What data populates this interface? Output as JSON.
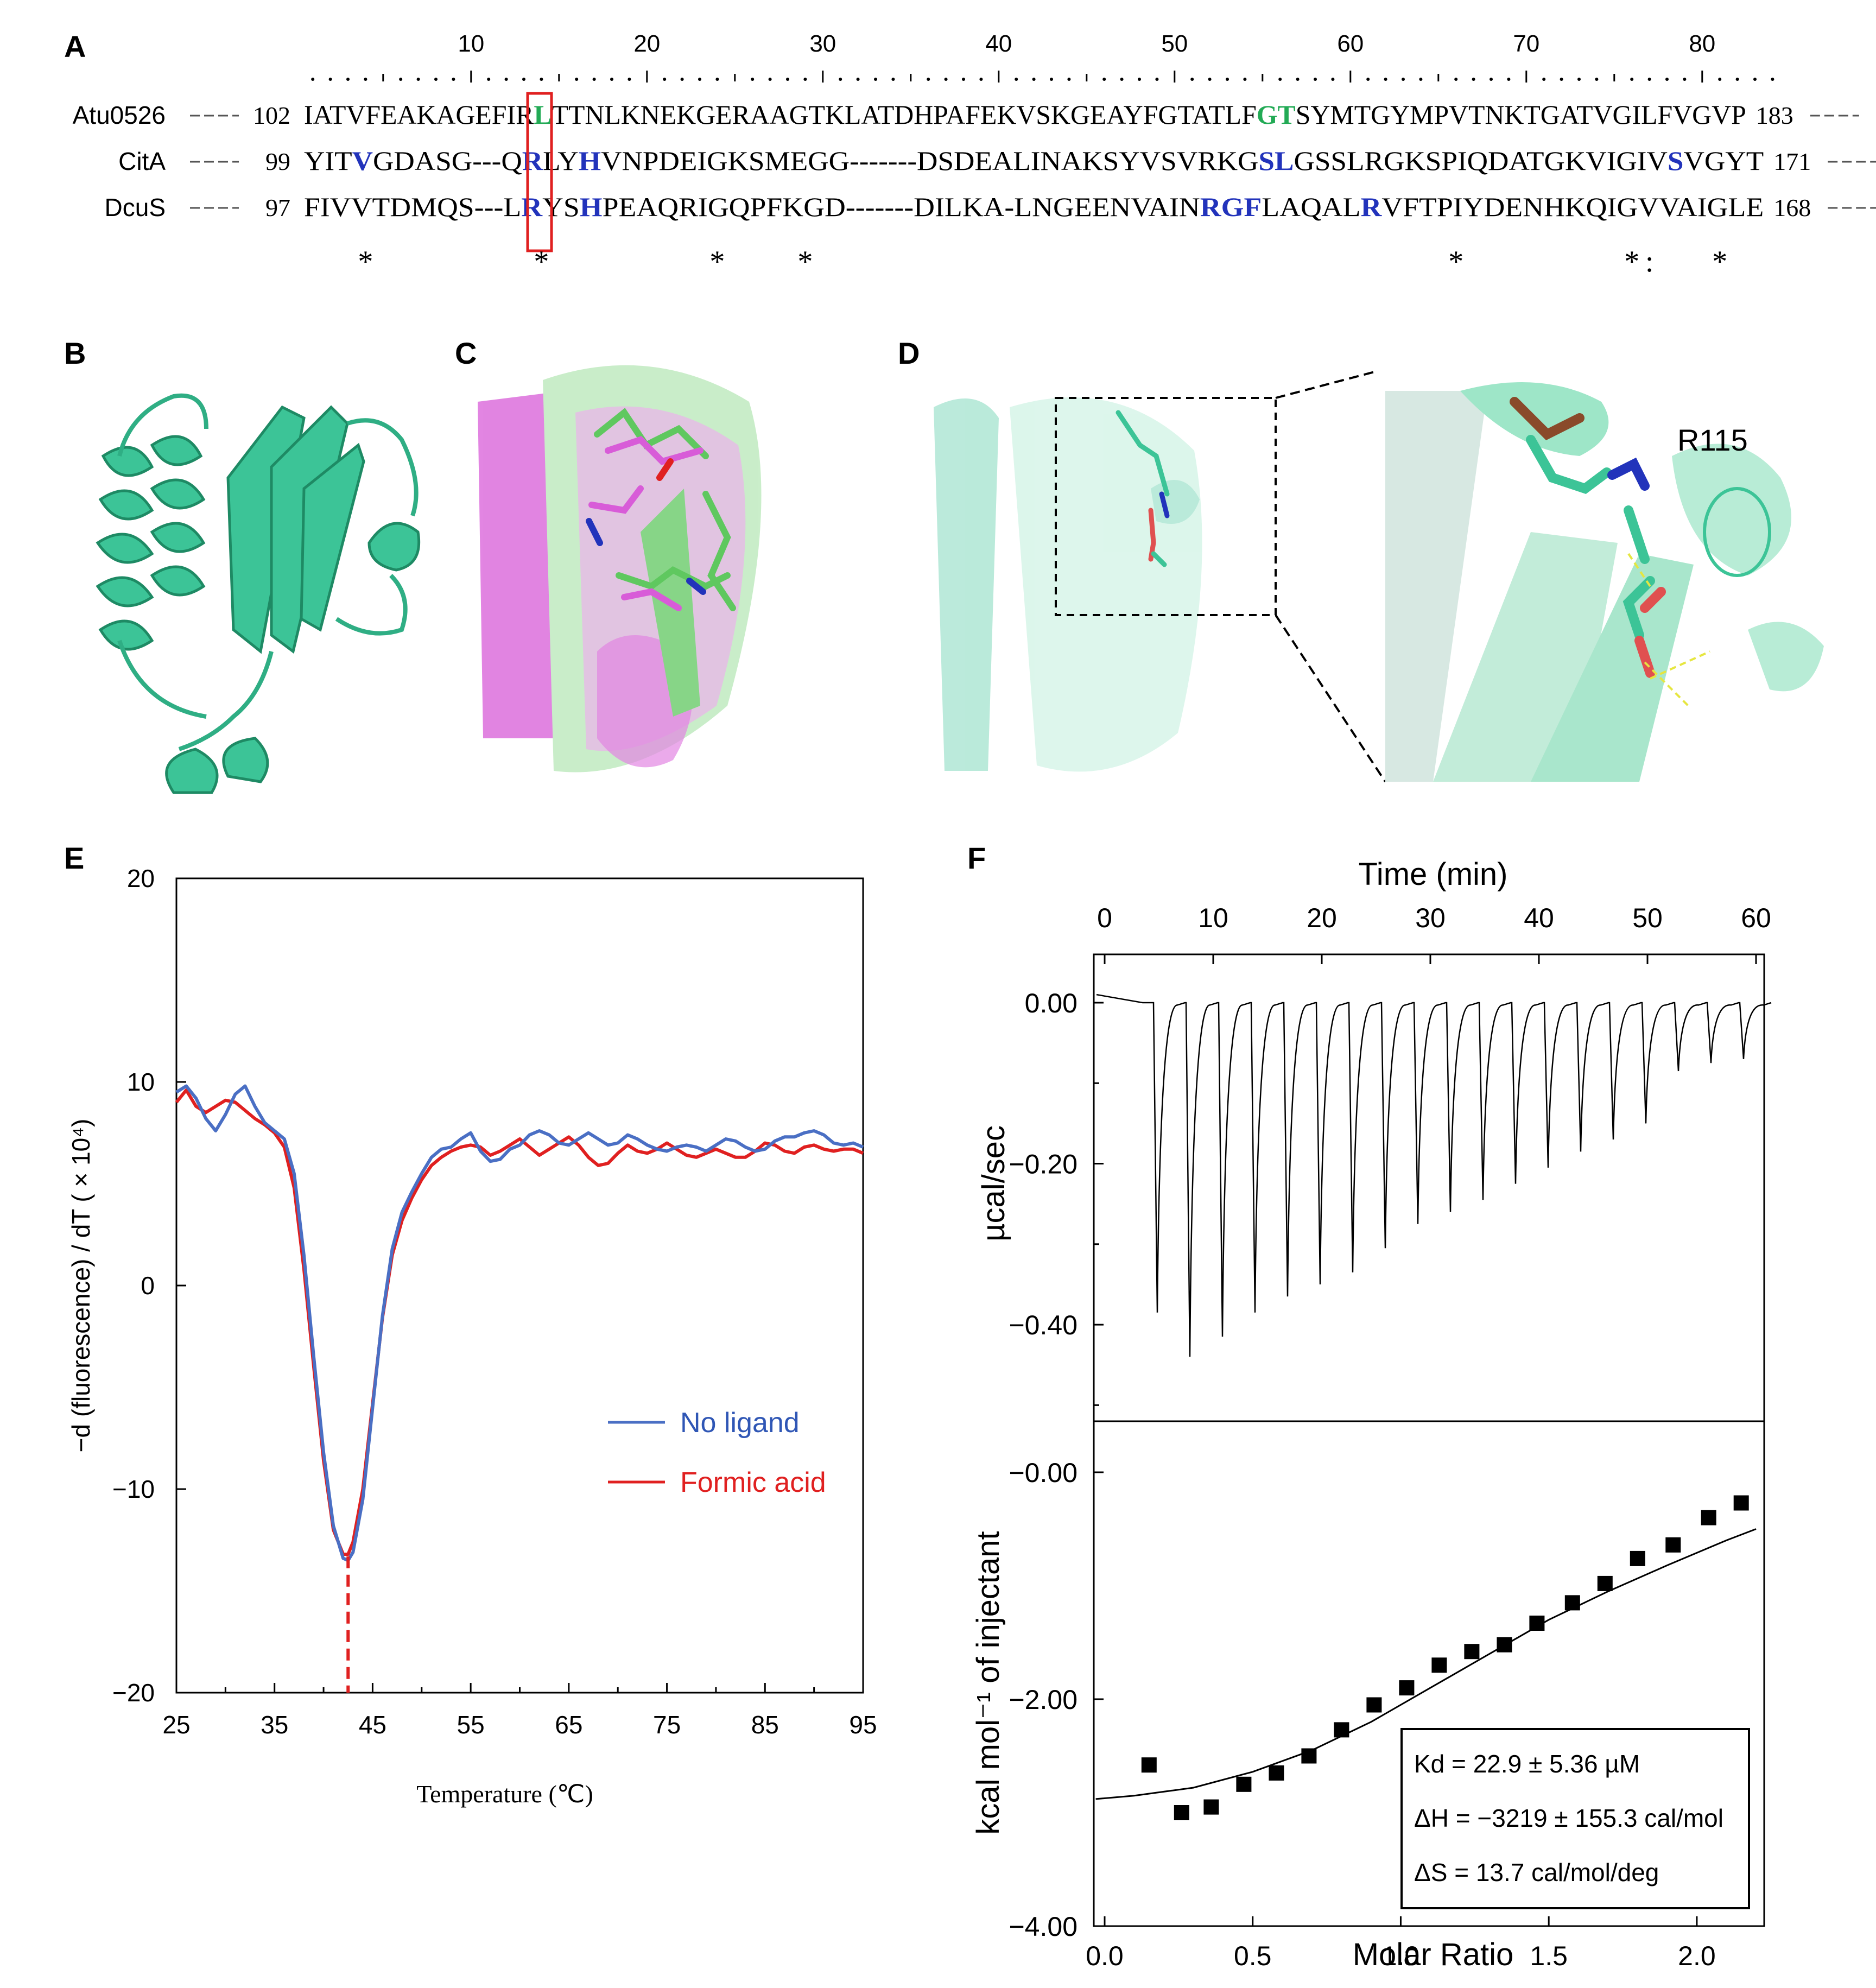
{
  "panels": {
    "A": "A",
    "B": "B",
    "C": "C",
    "D": "D",
    "E": "E",
    "F": "F"
  },
  "alignment": {
    "ruler": [
      "10",
      "20",
      "30",
      "40",
      "50",
      "60",
      "70",
      "80"
    ],
    "rows": [
      {
        "name": "Atu0526",
        "start": "102",
        "seq": "IATVFEAKAGEFIRLTTNLKNEKGERAAGTKLATDHPAFEKVSKGEAYFGTATLFGTSYMTGYMPVTNKTGATVGILFVGVP",
        "end": "183",
        "highlights": [
          {
            "i": 14,
            "color": "#22aa55"
          },
          {
            "i": 55,
            "color": "#22aa55"
          },
          {
            "i": 56,
            "color": "#22aa55"
          }
        ]
      },
      {
        "name": "CitA",
        "start": "99",
        "seq": "YITVGDASG---QRLYHVNPDEIGKSMEGG-------DSDEALINAKSYVSVRKGSLGSSLRGKSPIQDATGKVIGIVSVGYT",
        "end": "171",
        "highlights": [
          {
            "i": 3,
            "color": "#2233bb"
          },
          {
            "i": 13,
            "color": "#2233bb"
          },
          {
            "i": 16,
            "color": "#2233bb"
          },
          {
            "i": 55,
            "color": "#2233bb"
          },
          {
            "i": 56,
            "color": "#2233bb"
          },
          {
            "i": 78,
            "color": "#2233bb"
          }
        ]
      },
      {
        "name": "DcuS",
        "start": "97",
        "seq": "FIVVTDMQS---LRYSHPEAQRIGQPFKGD-------DILKA-LNGEENVAINRGFLAQALRVFTPIYDENHKQIGVVAIGLE",
        "end": "168",
        "highlights": [
          {
            "i": 13,
            "color": "#2233bb"
          },
          {
            "i": 16,
            "color": "#2233bb"
          },
          {
            "i": 53,
            "color": "#2233bb"
          },
          {
            "i": 54,
            "color": "#2233bb"
          },
          {
            "i": 55,
            "color": "#2233bb"
          },
          {
            "i": 61,
            "color": "#2233bb"
          }
        ]
      }
    ],
    "conservation": "   *         *         *    *                                    *         *:   *  "
  },
  "panel_d_label": "R115",
  "colors": {
    "teal": "#3cc497",
    "green": "#5fc85f",
    "magenta": "#d85cd8",
    "blue": "#4a6fc4",
    "red": "#e02020"
  },
  "panel_e": {
    "chart_data": {
      "type": "line",
      "xlabel": "Temperature (℃)",
      "ylabel": "−d (fluorescence) / dT ( × 10⁴)",
      "xlim": [
        25,
        95
      ],
      "ylim": [
        -20,
        20
      ],
      "x_ticks": [
        "25",
        "35",
        "45",
        "55",
        "65",
        "75",
        "85",
        "95"
      ],
      "y_ticks": [
        "20",
        "10",
        "0",
        "−10",
        "−20"
      ],
      "legend_position": "lower-right",
      "series": [
        {
          "name": "No ligand",
          "color": "#4a6fc4",
          "x": [
            25,
            26,
            27,
            28,
            29,
            30,
            31,
            32,
            33,
            34,
            35,
            36,
            37,
            38,
            39,
            40,
            41,
            42,
            42.5,
            43,
            44,
            45,
            46,
            47,
            48,
            49,
            50,
            51,
            52,
            53,
            54,
            55,
            56,
            57,
            58,
            59,
            60,
            61,
            62,
            63,
            64,
            65,
            66,
            67,
            68,
            69,
            70,
            71,
            72,
            73,
            74,
            75,
            76,
            77,
            78,
            79,
            80,
            81,
            82,
            83,
            84,
            85,
            86,
            87,
            88,
            89,
            90,
            91,
            92,
            93,
            94,
            95
          ],
          "y": [
            9.5,
            9.8,
            9.2,
            8.2,
            7.6,
            8.4,
            9.4,
            9.8,
            8.8,
            8,
            7.6,
            7.2,
            5.5,
            1.5,
            -3.5,
            -8.2,
            -11.8,
            -13.4,
            -13.5,
            -13.1,
            -10.5,
            -6,
            -1.5,
            1.8,
            3.6,
            4.6,
            5.5,
            6.3,
            6.7,
            6.8,
            7.2,
            7.5,
            6.6,
            6.1,
            6.2,
            6.7,
            6.9,
            7.4,
            7.6,
            7.4,
            7,
            6.9,
            7.2,
            7.5,
            7.2,
            6.9,
            7,
            7.4,
            7.2,
            6.9,
            6.7,
            6.6,
            6.8,
            6.9,
            6.8,
            6.6,
            6.9,
            7.2,
            7.1,
            6.8,
            6.6,
            6.7,
            7.1,
            7.3,
            7.3,
            7.5,
            7.6,
            7.4,
            7.0,
            6.9,
            7.0,
            6.8
          ]
        },
        {
          "name": "Formic acid",
          "color": "#e02020",
          "x": [
            25,
            26,
            27,
            28,
            29,
            30,
            31,
            32,
            33,
            34,
            35,
            36,
            37,
            38,
            39,
            40,
            41,
            42,
            42.5,
            43,
            44,
            45,
            46,
            47,
            48,
            49,
            50,
            51,
            52,
            53,
            54,
            55,
            56,
            57,
            58,
            59,
            60,
            61,
            62,
            63,
            64,
            65,
            66,
            67,
            68,
            69,
            70,
            71,
            72,
            73,
            74,
            75,
            76,
            77,
            78,
            79,
            80,
            81,
            82,
            83,
            84,
            85,
            86,
            87,
            88,
            89,
            90,
            91,
            92,
            93,
            94,
            95
          ],
          "y": [
            9,
            9.6,
            8.8,
            8.5,
            8.8,
            9.1,
            9.0,
            8.6,
            8.2,
            7.9,
            7.5,
            6.8,
            4.8,
            0.8,
            -4,
            -8.6,
            -12,
            -13.2,
            -13.2,
            -12.6,
            -10,
            -5.8,
            -1.6,
            1.5,
            3.2,
            4.3,
            5.2,
            5.9,
            6.3,
            6.6,
            6.8,
            6.9,
            6.8,
            6.4,
            6.6,
            6.9,
            7.2,
            6.8,
            6.4,
            6.7,
            7,
            7.3,
            6.9,
            6.3,
            5.9,
            6,
            6.5,
            6.9,
            6.6,
            6.5,
            6.7,
            7,
            6.7,
            6.4,
            6.3,
            6.5,
            6.7,
            6.5,
            6.3,
            6.3,
            6.6,
            7.0,
            6.9,
            6.6,
            6.5,
            6.8,
            6.9,
            6.7,
            6.6,
            6.7,
            6.7,
            6.5
          ]
        }
      ],
      "annotation": {
        "type": "dashed-vline",
        "x": 42.5,
        "color": "#e02020"
      }
    }
  },
  "panel_f": {
    "top": {
      "chart_data": {
        "type": "line",
        "xlabel": "Time (min)",
        "ylabel": "µcal/sec",
        "xlim": [
          0,
          60
        ],
        "ylim": [
          -0.52,
          0.06
        ],
        "x_ticks": [
          "0",
          "10",
          "20",
          "30",
          "40",
          "50",
          "60"
        ],
        "y_ticks": [
          "0.00",
          "−0.20",
          "−0.40"
        ],
        "injections": {
          "times": [
            4.5,
            7.5,
            10.5,
            13.5,
            16.5,
            19.5,
            22.5,
            25.5,
            28.5,
            31.5,
            34.5,
            37.5,
            40.5,
            43.5,
            46.5,
            49.5,
            52.5,
            55.5,
            58.5
          ],
          "peaks": [
            -0.385,
            -0.44,
            -0.415,
            -0.385,
            -0.365,
            -0.35,
            -0.335,
            -0.305,
            -0.275,
            -0.26,
            -0.245,
            -0.225,
            -0.205,
            -0.185,
            -0.17,
            -0.15,
            -0.085,
            -0.075,
            -0.07
          ]
        }
      }
    },
    "bottom": {
      "chart_data": {
        "type": "scatter",
        "xlabel": "Molar Ratio",
        "ylabel": "kcal mol⁻¹ of injectant",
        "xlim": [
          -0.05,
          2.2
        ],
        "ylim": [
          -4.0,
          0.45
        ],
        "x_ticks": [
          "0.0",
          "0.5",
          "1.0",
          "1.5",
          "2.0"
        ],
        "y_ticks": [
          "−0.00",
          "−2.00",
          "−4.00"
        ],
        "points": {
          "x": [
            0.15,
            0.26,
            0.36,
            0.47,
            0.58,
            0.69,
            0.8,
            0.91,
            1.02,
            1.13,
            1.24,
            1.35,
            1.46,
            1.58,
            1.69,
            1.8,
            1.92,
            2.04,
            2.15
          ],
          "y": [
            -2.58,
            -3.0,
            -2.95,
            -2.75,
            -2.65,
            -2.5,
            -2.27,
            -2.05,
            -1.9,
            -1.7,
            -1.58,
            -1.52,
            -1.33,
            -1.15,
            -0.98,
            -0.76,
            -0.64,
            -0.4,
            -0.27
          ]
        },
        "fit": {
          "x": [
            -0.05,
            0.1,
            0.3,
            0.5,
            0.7,
            0.9,
            1.1,
            1.3,
            1.5,
            1.7,
            1.9,
            2.1,
            2.2
          ],
          "y": [
            -2.88,
            -2.85,
            -2.78,
            -2.64,
            -2.45,
            -2.2,
            -1.9,
            -1.6,
            -1.3,
            -1.05,
            -0.82,
            -0.6,
            -0.5
          ]
        },
        "fit_params": [
          "Kd = 22.9 ± 5.36 µM",
          "ΔH = −3219 ± 155.3 cal/mol",
          "ΔS = 13.7 cal/mol/deg"
        ]
      }
    }
  }
}
